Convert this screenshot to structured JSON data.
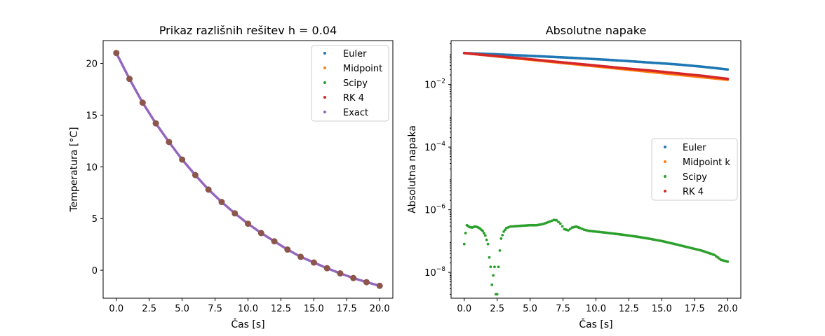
{
  "chart_data": [
    {
      "type": "scatter",
      "title": "Prikaz razlišnih rešitev h = 0.04",
      "xlabel": "Čas [s]",
      "ylabel": "Temperatura [°C]",
      "xlim": [
        -1,
        21
      ],
      "ylim": [
        -2.7,
        22.2
      ],
      "xticks": [
        0,
        2.5,
        5,
        7.5,
        10,
        12.5,
        15,
        17.5,
        20
      ],
      "xtick_labels": [
        "0.0",
        "2.5",
        "5.0",
        "7.5",
        "10.0",
        "12.5",
        "15.0",
        "17.5",
        "20.0"
      ],
      "yticks": [
        0,
        5,
        10,
        15,
        20
      ],
      "ytick_labels": [
        "0",
        "5",
        "10",
        "15",
        "20"
      ],
      "grid": false,
      "legend_position": "top-right",
      "legend": [
        "Euler",
        "Midpoint",
        "Scipy",
        "RK 4",
        "Exact"
      ],
      "series": [
        {
          "name": "Euler",
          "color": "#1f77b4",
          "marker": "dot"
        },
        {
          "name": "Midpoint",
          "color": "#ff7f0e",
          "marker": "dot"
        },
        {
          "name": "Scipy",
          "color": "#2ca02c",
          "marker": "dot"
        },
        {
          "name": "RK 4",
          "color": "#d62728",
          "marker": "dot"
        },
        {
          "name": "Exact",
          "color": "#9467bd",
          "marker": "dot"
        }
      ],
      "overlay_points": {
        "color": "#8c564b",
        "x": [
          0,
          1,
          2,
          3,
          4,
          5,
          6,
          7,
          8,
          9,
          10,
          11,
          12,
          13,
          14,
          15,
          16,
          17,
          18,
          19,
          20
        ],
        "y": [
          21.0,
          18.5,
          16.2,
          14.2,
          12.4,
          10.7,
          9.2,
          7.8,
          6.6,
          5.5,
          4.5,
          3.6,
          2.8,
          2.0,
          1.3,
          0.75,
          0.2,
          -0.3,
          -0.75,
          -1.15,
          -1.5
        ]
      },
      "curve": {
        "x": [
          0,
          1,
          2,
          3,
          4,
          5,
          6,
          7,
          8,
          9,
          10,
          11,
          12,
          13,
          14,
          15,
          16,
          17,
          18,
          19,
          20
        ],
        "y": [
          21.0,
          18.5,
          16.2,
          14.2,
          12.4,
          10.7,
          9.2,
          7.8,
          6.6,
          5.5,
          4.5,
          3.6,
          2.8,
          2.0,
          1.3,
          0.75,
          0.2,
          -0.3,
          -0.75,
          -1.15,
          -1.5
        ]
      }
    },
    {
      "type": "scatter",
      "title": "Absolutne napake",
      "xlabel": "Čas [s]",
      "ylabel": "Absolutna napaka",
      "yscale": "log",
      "xlim": [
        -1,
        21
      ],
      "ylim": [
        1.5e-09,
        0.25
      ],
      "xticks": [
        0,
        2.5,
        5,
        7.5,
        10,
        12.5,
        15,
        17.5,
        20
      ],
      "xtick_labels": [
        "0.0",
        "2.5",
        "5.0",
        "7.5",
        "10.0",
        "12.5",
        "15.0",
        "17.5",
        "20.0"
      ],
      "yticks_exp": [
        -2,
        -4,
        -6,
        -8
      ],
      "grid": false,
      "legend_position": "center-right",
      "legend": [
        "Euler",
        "Midpoint k",
        "Scipy",
        "RK 4"
      ],
      "series": [
        {
          "name": "Euler",
          "color": "#1f77b4",
          "x": [
            0,
            2,
            4,
            6,
            8,
            10,
            12,
            14,
            16,
            18,
            20
          ],
          "y": [
            0.1,
            0.093,
            0.085,
            0.078,
            0.071,
            0.064,
            0.057,
            0.05,
            0.044,
            0.037,
            0.03
          ]
        },
        {
          "name": "Midpoint k",
          "color": "#ff7f0e",
          "x": [
            0,
            20
          ],
          "y": [
            0.1,
            0.014
          ]
        },
        {
          "name": "Scipy",
          "color": "#2ca02c",
          "x": [
            0,
            0.1,
            0.2,
            0.4,
            0.6,
            0.8,
            1.0,
            1.2,
            1.4,
            1.6,
            1.8,
            1.9,
            2.0,
            2.1,
            2.2,
            2.3,
            2.4,
            2.5,
            2.6,
            2.7,
            2.8,
            3.0,
            3.2,
            3.5,
            4.0,
            4.5,
            5.0,
            5.5,
            6.0,
            6.5,
            6.8,
            7.0,
            7.3,
            7.6,
            7.9,
            8.2,
            8.5,
            8.8,
            9.1,
            9.5,
            10,
            11,
            12,
            13,
            14,
            15,
            16,
            17,
            18,
            19,
            19.5,
            20
          ],
          "y": [
            8e-08,
            1.8e-07,
            3.2e-07,
            2.8e-07,
            2.7e-07,
            2.9e-07,
            2.8e-07,
            2.5e-07,
            2.1e-07,
            1.5e-07,
            8e-08,
            3e-08,
            1.5e-08,
            4e-09,
            8e-09,
            1.5e-08,
            2e-09,
            2e-09,
            1.5e-08,
            5e-08,
            1.2e-07,
            2e-07,
            2.6e-07,
            2.9e-07,
            3e-07,
            3.1e-07,
            3.2e-07,
            3.2e-07,
            3.5e-07,
            4.2e-07,
            4.7e-07,
            4.6e-07,
            3.6e-07,
            2.4e-07,
            2.2e-07,
            2.7e-07,
            2.9e-07,
            2.6e-07,
            2.3e-07,
            2.1e-07,
            2e-07,
            1.8e-07,
            1.6e-07,
            1.4e-07,
            1.2e-07,
            1e-07,
            8e-08,
            6.3e-08,
            5e-08,
            3.6e-08,
            2.5e-08,
            2.2e-08
          ]
        },
        {
          "name": "RK 4",
          "color": "#d62728",
          "x": [
            0,
            2,
            4,
            6,
            8,
            10,
            12,
            14,
            16,
            18,
            20
          ],
          "y": [
            0.1,
            0.083,
            0.07,
            0.058,
            0.048,
            0.04,
            0.033,
            0.028,
            0.023,
            0.019,
            0.015
          ]
        }
      ]
    }
  ]
}
